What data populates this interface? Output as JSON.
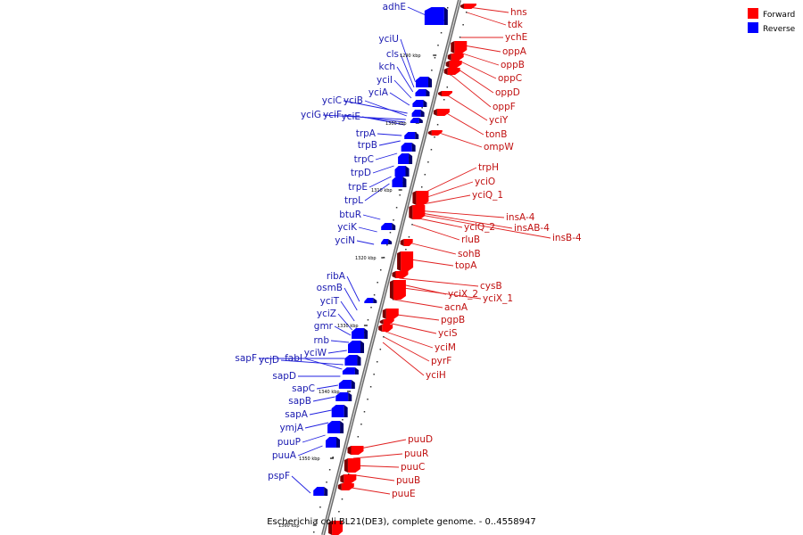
{
  "caption": "Escherichia coli BL21(DE3), complete genome. - 0..4558947",
  "legend": [
    {
      "label": "Forward",
      "color": "#ff0000"
    },
    {
      "label": "Reverse",
      "color": "#0000ff"
    }
  ],
  "kbp_labels": [
    "1290 kbp",
    "1300 kbp",
    "1310 kbp",
    "1320 kbp",
    "1330 kbp",
    "1340 kbp",
    "1350 kbp",
    "1360 kbp"
  ],
  "reverse_genes": [
    "adhE",
    "yciU",
    "cls",
    "kch",
    "yciI",
    "yciA",
    "yciC",
    "yciB",
    "yciG",
    "yciF",
    "yciE",
    "trpA",
    "trpB",
    "trpC",
    "trpD",
    "trpE",
    "trpL",
    "btuR",
    "yciK",
    "yciN",
    "ribA",
    "osmB",
    "yciT",
    "yciZ",
    "gmr",
    "rnb",
    "yciW",
    "sapF",
    "ycjD",
    "fabI",
    "sapD",
    "sapC",
    "sapB",
    "sapA",
    "ymjA",
    "puuP",
    "puuA",
    "pspF"
  ],
  "forward_genes": [
    "hns",
    "tdk",
    "ychE",
    "oppA",
    "oppB",
    "oppC",
    "oppD",
    "oppF",
    "yciY",
    "tonB",
    "ompW",
    "trpH",
    "yciO",
    "yciQ_1",
    "insA-4",
    "insAB-4",
    "insB-4",
    "yciQ_2",
    "rluB",
    "sohB",
    "topA",
    "cysB",
    "yciX_2",
    "yciX_1",
    "acnA",
    "pgpB",
    "yciS",
    "yciM",
    "pyrF",
    "yciH",
    "puuD",
    "puuR",
    "puuC",
    "puuB",
    "puuE"
  ]
}
